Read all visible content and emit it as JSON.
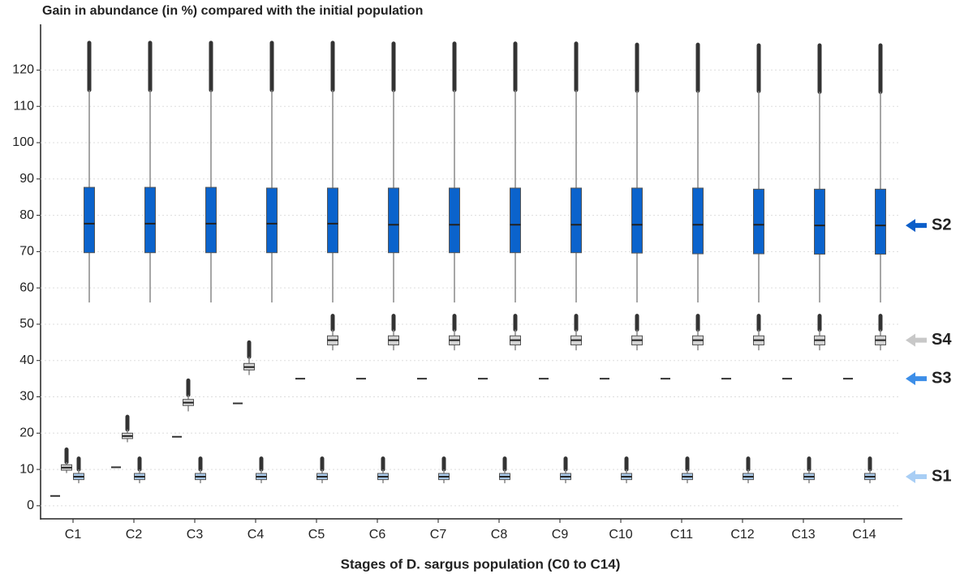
{
  "chart_data": {
    "type": "box",
    "title": "Gain in abundance (in %) compared with the initial population",
    "x_label": "Stages of D. sargus population (C0 to C14)",
    "categories": [
      "C1",
      "C2",
      "C3",
      "C4",
      "C5",
      "C6",
      "C7",
      "C8",
      "C9",
      "C10",
      "C11",
      "C12",
      "C13",
      "C14"
    ],
    "ylim": [
      -3.6,
      132.6
    ],
    "yticks": [
      0,
      10,
      20,
      30,
      40,
      50,
      60,
      70,
      80,
      90,
      100,
      110,
      120
    ],
    "grid": true,
    "series": [
      {
        "name": "S2",
        "color": "#0b63cc",
        "arrow_color": "#0b5ec9",
        "low": [
          56,
          56,
          56,
          56,
          56,
          56,
          56,
          56,
          56,
          56,
          56,
          56,
          56,
          56
        ],
        "q1": [
          69.7,
          69.7,
          69.7,
          69.7,
          69.7,
          69.7,
          69.7,
          69.7,
          69.7,
          69.6,
          69.4,
          69.4,
          69.3,
          69.3
        ],
        "median": [
          77.7,
          77.7,
          77.7,
          77.7,
          77.7,
          77.4,
          77.4,
          77.4,
          77.4,
          77.4,
          77.4,
          77.4,
          77.2,
          77.2
        ],
        "q3": [
          87.7,
          87.7,
          87.7,
          87.5,
          87.5,
          87.5,
          87.5,
          87.5,
          87.5,
          87.5,
          87.5,
          87.2,
          87.2,
          87.2
        ],
        "high": [
          114.5,
          114.5,
          114.5,
          114.5,
          114.5,
          114.5,
          114.5,
          114.5,
          114.5,
          114.3,
          114.3,
          114.2,
          114,
          114
        ],
        "outlier_max": [
          127.5,
          127.5,
          127.5,
          127.5,
          127.5,
          127.3,
          127.3,
          127.3,
          127.3,
          127,
          127,
          126.8,
          126.8,
          126.8
        ]
      },
      {
        "name": "S4",
        "color": "#d4d4d4",
        "arrow_color": "#c8c8c8",
        "low": [
          9,
          17.5,
          26,
          36,
          42.8,
          42.8,
          42.8,
          42.8,
          42.8,
          42.8,
          42.8,
          42.8,
          42.8,
          42.8
        ],
        "q1": [
          9.8,
          18.5,
          27.6,
          37.4,
          44.3,
          44.3,
          44.3,
          44.3,
          44.3,
          44.3,
          44.3,
          44.3,
          44.3,
          44.3
        ],
        "median": [
          10.5,
          19.2,
          28.4,
          38.2,
          45.6,
          45.6,
          45.6,
          45.6,
          45.6,
          45.6,
          45.6,
          45.6,
          45.6,
          45.6
        ],
        "q3": [
          11.3,
          20,
          29.3,
          39.2,
          46.8,
          46.8,
          46.8,
          46.8,
          46.8,
          46.8,
          46.8,
          46.8,
          46.8,
          46.8
        ],
        "high": [
          12,
          21,
          30.5,
          41,
          48.5,
          48.5,
          48.5,
          48.5,
          48.5,
          48.5,
          48.5,
          48.5,
          48.5,
          48.5
        ],
        "outlier_max": [
          15.5,
          24.5,
          34.5,
          45,
          52.3,
          52.3,
          52.3,
          52.3,
          52.3,
          52.3,
          52.3,
          52.3,
          52.3,
          52.3
        ]
      },
      {
        "name": "S3",
        "color": "#333333",
        "arrow_color": "#3d8ee8",
        "median": [
          2.7,
          10.6,
          19,
          28.2,
          35,
          35,
          35,
          35,
          35,
          35,
          35,
          35,
          35,
          35
        ]
      },
      {
        "name": "S1",
        "color": "#a9c9ea",
        "arrow_color": "#a8cef5",
        "low": [
          6.2,
          6.2,
          6.2,
          6.2,
          6.2,
          6.2,
          6.2,
          6.2,
          6.2,
          6.2,
          6.2,
          6.2,
          6.2,
          6.2
        ],
        "q1": [
          7.2,
          7.2,
          7.2,
          7.2,
          7.2,
          7.2,
          7.2,
          7.2,
          7.2,
          7.2,
          7.2,
          7.2,
          7.2,
          7.2
        ],
        "median": [
          8,
          8,
          8,
          8,
          8,
          8,
          8,
          8,
          8,
          8,
          8,
          8,
          8,
          8
        ],
        "q3": [
          8.9,
          8.9,
          8.9,
          8.9,
          8.9,
          8.9,
          8.9,
          8.9,
          8.9,
          8.9,
          8.9,
          8.9,
          8.9,
          8.9
        ],
        "high": [
          10,
          10,
          10,
          10,
          10,
          10,
          10,
          10,
          10,
          10,
          10,
          10,
          10,
          10
        ],
        "outlier_max": [
          13,
          13,
          13,
          13,
          13,
          13,
          13,
          13,
          13,
          13,
          13,
          13,
          13,
          13
        ]
      }
    ]
  }
}
